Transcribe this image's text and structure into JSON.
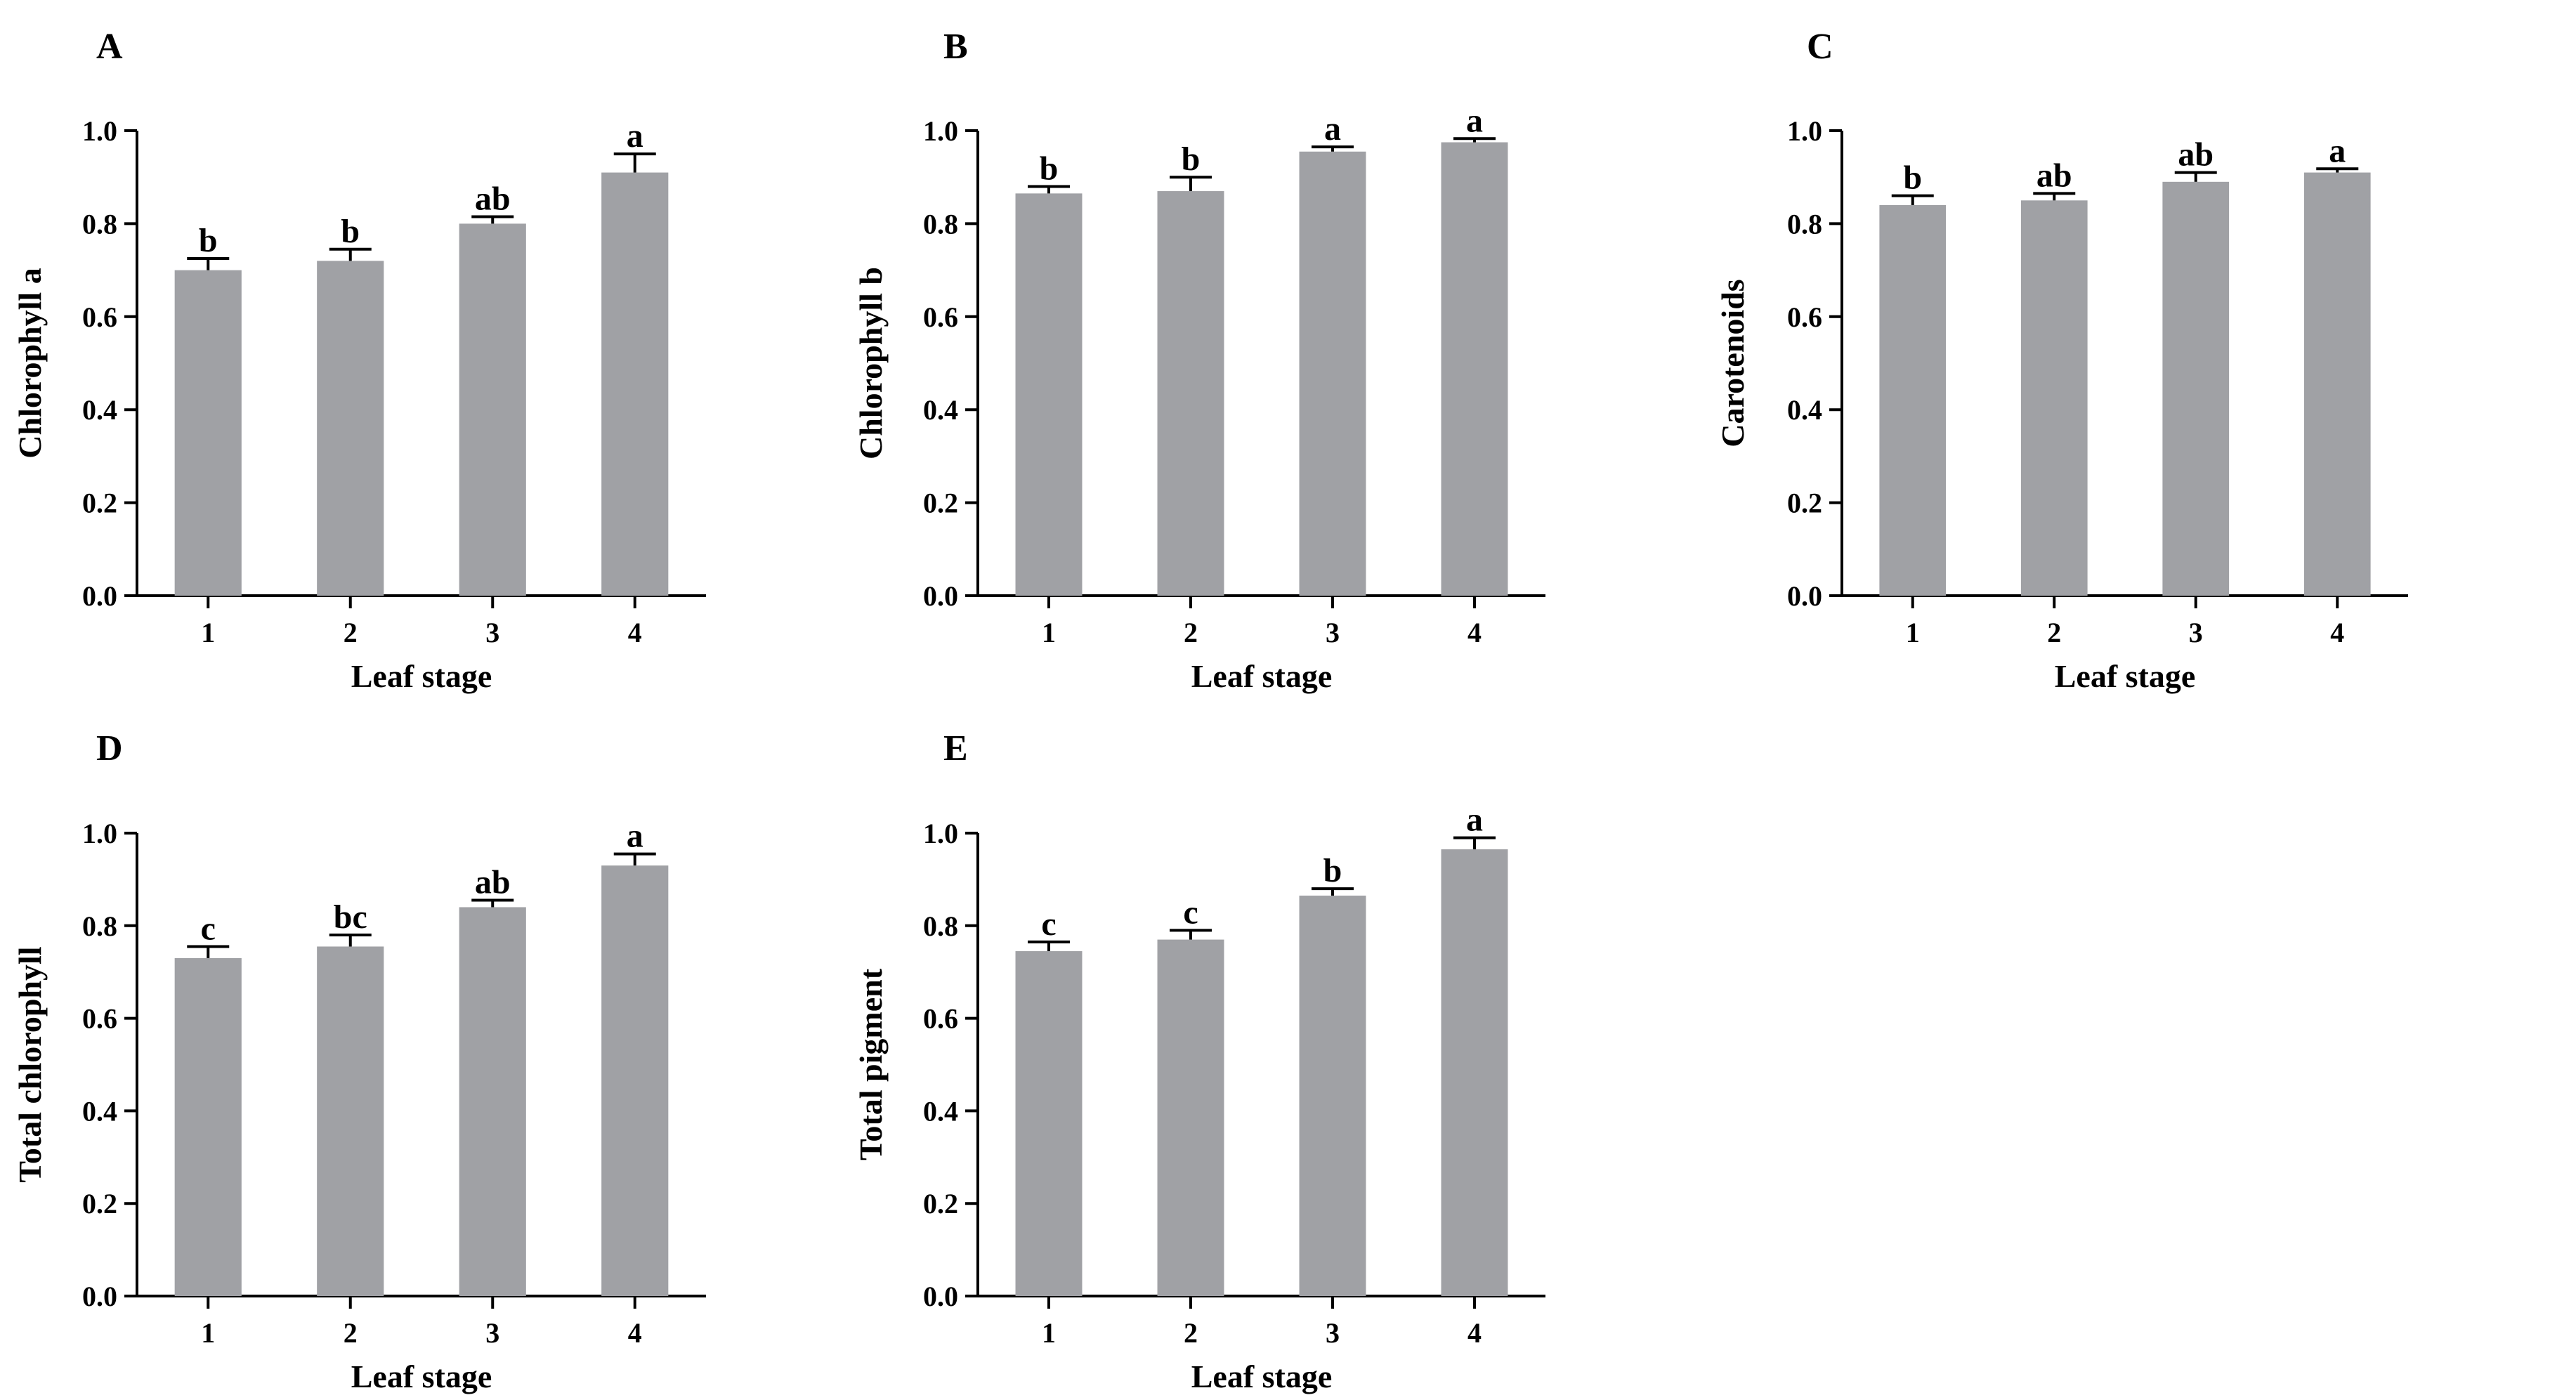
{
  "colors": {
    "bar": "#a0a1a5",
    "axis": "#000000",
    "background": "#ffffff"
  },
  "chart_data": [
    {
      "type": "bar",
      "panel_label": "A",
      "title": "",
      "xlabel": "Leaf stage",
      "ylabel": "Chlorophyll a",
      "categories": [
        "1",
        "2",
        "3",
        "4"
      ],
      "values": [
        0.7,
        0.72,
        0.8,
        0.91
      ],
      "errors": [
        0.025,
        0.025,
        0.015,
        0.04
      ],
      "significance": [
        "b",
        "b",
        "ab",
        "a"
      ],
      "ylim": [
        0,
        1.0
      ],
      "yticks": [
        "0.0",
        "0.2",
        "0.4",
        "0.6",
        "0.8",
        "1.0"
      ],
      "grid": false
    },
    {
      "type": "bar",
      "panel_label": "B",
      "title": "",
      "xlabel": "Leaf stage",
      "ylabel": "Chlorophyll b",
      "categories": [
        "1",
        "2",
        "3",
        "4"
      ],
      "values": [
        0.865,
        0.87,
        0.955,
        0.975
      ],
      "errors": [
        0.015,
        0.03,
        0.01,
        0.008
      ],
      "significance": [
        "b",
        "b",
        "a",
        "a"
      ],
      "ylim": [
        0,
        1.0
      ],
      "yticks": [
        "0.0",
        "0.2",
        "0.4",
        "0.6",
        "0.8",
        "1.0"
      ],
      "grid": false
    },
    {
      "type": "bar",
      "panel_label": "C",
      "title": "",
      "xlabel": "Leaf stage",
      "ylabel": "Carotenoids",
      "categories": [
        "1",
        "2",
        "3",
        "4"
      ],
      "values": [
        0.84,
        0.85,
        0.89,
        0.91
      ],
      "errors": [
        0.02,
        0.015,
        0.02,
        0.008
      ],
      "significance": [
        "b",
        "ab",
        "ab",
        "a"
      ],
      "ylim": [
        0,
        1.0
      ],
      "yticks": [
        "0.0",
        "0.2",
        "0.4",
        "0.6",
        "0.8",
        "1.0"
      ],
      "grid": false
    },
    {
      "type": "bar",
      "panel_label": "D",
      "title": "",
      "xlabel": "Leaf stage",
      "ylabel": "Total chlorophyll",
      "categories": [
        "1",
        "2",
        "3",
        "4"
      ],
      "values": [
        0.73,
        0.755,
        0.84,
        0.93
      ],
      "errors": [
        0.025,
        0.025,
        0.015,
        0.025
      ],
      "significance": [
        "c",
        "bc",
        "ab",
        "a"
      ],
      "ylim": [
        0,
        1.0
      ],
      "yticks": [
        "0.0",
        "0.2",
        "0.4",
        "0.6",
        "0.8",
        "1.0"
      ],
      "grid": false
    },
    {
      "type": "bar",
      "panel_label": "E",
      "title": "",
      "xlabel": "Leaf stage",
      "ylabel": "Total pigment",
      "categories": [
        "1",
        "2",
        "3",
        "4"
      ],
      "values": [
        0.745,
        0.77,
        0.865,
        0.965
      ],
      "errors": [
        0.02,
        0.02,
        0.015,
        0.025
      ],
      "significance": [
        "c",
        "c",
        "b",
        "a"
      ],
      "ylim": [
        0,
        1.0
      ],
      "yticks": [
        "0.0",
        "0.2",
        "0.4",
        "0.6",
        "0.8",
        "1.0"
      ],
      "grid": false
    }
  ]
}
